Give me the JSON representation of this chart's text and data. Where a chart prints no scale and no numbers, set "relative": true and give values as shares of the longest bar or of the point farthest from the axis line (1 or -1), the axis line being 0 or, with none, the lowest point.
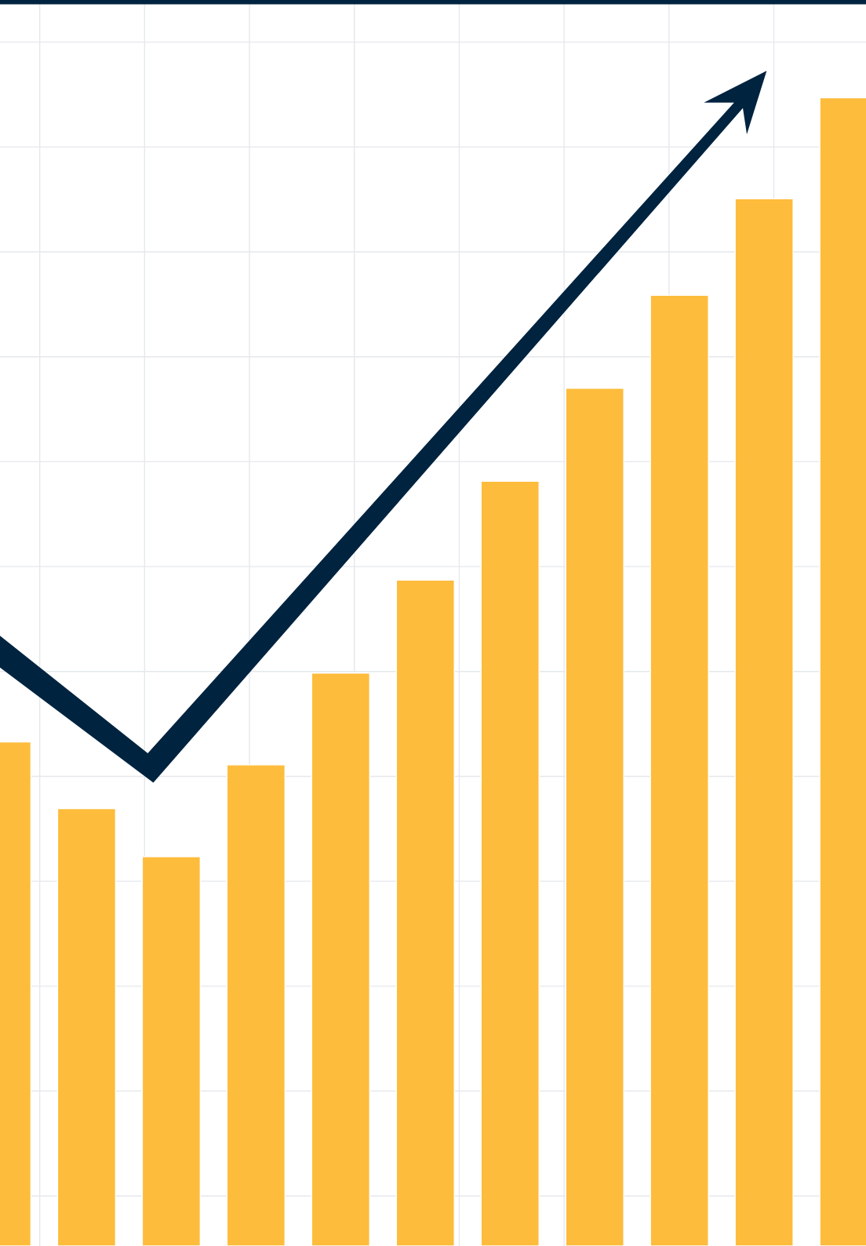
{
  "chart_data": {
    "type": "bar",
    "relative": true,
    "categories": [
      null,
      null,
      null,
      null,
      null,
      null,
      null,
      null,
      null,
      null,
      null
    ],
    "values": [
      0.439,
      0.381,
      0.339,
      0.419,
      0.499,
      0.58,
      0.666,
      0.747,
      0.828,
      0.912,
      1.0
    ],
    "color": "#fdbc3c",
    "grid": true
  }
}
